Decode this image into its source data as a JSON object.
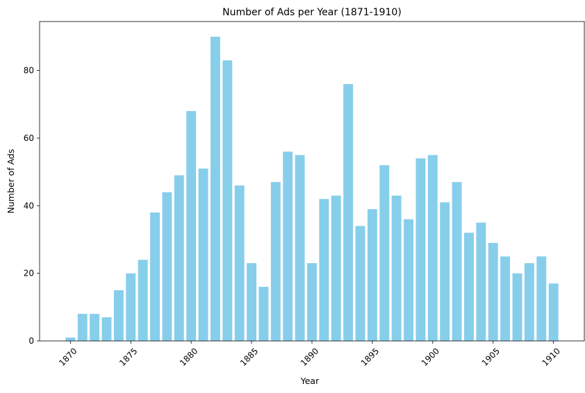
{
  "chart_data": {
    "type": "bar",
    "title": "Number of Ads per Year (1871-1910)",
    "xlabel": "Year",
    "ylabel": "Number of Ads",
    "x": [
      1870,
      1871,
      1872,
      1873,
      1874,
      1875,
      1876,
      1877,
      1878,
      1879,
      1880,
      1881,
      1882,
      1883,
      1884,
      1885,
      1886,
      1887,
      1888,
      1889,
      1890,
      1891,
      1892,
      1893,
      1894,
      1895,
      1896,
      1897,
      1898,
      1899,
      1900,
      1901,
      1902,
      1903,
      1904,
      1905,
      1906,
      1907,
      1908,
      1909,
      1910
    ],
    "values": [
      1,
      8,
      8,
      7,
      15,
      20,
      24,
      38,
      44,
      49,
      68,
      51,
      90,
      83,
      46,
      23,
      16,
      47,
      56,
      55,
      23,
      42,
      43,
      76,
      34,
      39,
      52,
      43,
      36,
      54,
      55,
      41,
      47,
      32,
      35,
      29,
      25,
      20,
      23,
      25,
      17
    ],
    "xticks": [
      "1870",
      "1875",
      "1880",
      "1885",
      "1890",
      "1895",
      "1900",
      "1905",
      "1910"
    ],
    "yticks": [
      "0",
      "20",
      "40",
      "60",
      "80"
    ],
    "xlim": [
      1867.45,
      1912.55
    ],
    "ylim": [
      0,
      94.5
    ],
    "bar_color": "#87ceeb",
    "grid": false,
    "legend": "none"
  }
}
